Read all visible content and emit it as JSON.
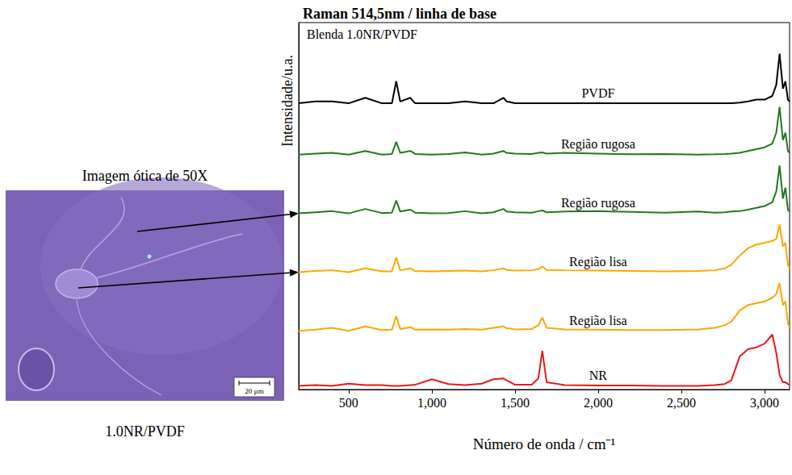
{
  "chart_data": {
    "type": "line",
    "title": "Raman 514,5nm / linha de base",
    "annotation": "Blenda 1.0NR/PVDF",
    "x_label": "Número de onda / cm⁻¹",
    "y_label": "Intensidade/u.a.",
    "xlim": [
      200,
      3150
    ],
    "xticks": [
      500,
      1000,
      1500,
      2000,
      2500,
      3000
    ],
    "ylim": [
      0,
      100
    ],
    "grid": false,
    "tick_labels": "x",
    "x": [
      200,
      300,
      400,
      500,
      600,
      700,
      760,
      786,
      810,
      870,
      880,
      900,
      1000,
      1100,
      1200,
      1300,
      1370,
      1430,
      1450,
      1500,
      1600,
      1640,
      1664,
      1690,
      1800,
      2000,
      2200,
      2400,
      2600,
      2700,
      2760,
      2800,
      2850,
      2900,
      2950,
      3000,
      3046,
      3070,
      3090,
      3110,
      3125,
      3140,
      3150
    ],
    "series": [
      {
        "name": "PVDF",
        "color": "#000000",
        "values": [
          78,
          78.5,
          78.5,
          78,
          79.5,
          78,
          78,
          84,
          78.5,
          79.5,
          79,
          78,
          78,
          78,
          78.5,
          78,
          78,
          79.5,
          78.5,
          78,
          78,
          78,
          78,
          78,
          78,
          78,
          78,
          78,
          78,
          78,
          78,
          78,
          78.2,
          78.5,
          79,
          79,
          80,
          83,
          91.5,
          82,
          84,
          79,
          78.5
        ]
      },
      {
        "name": "Região rugosa",
        "color": "#1f7a1f",
        "values": [
          64,
          64.3,
          64.5,
          64,
          65,
          64,
          64.2,
          67.5,
          64.5,
          65,
          64.8,
          64.2,
          64,
          64.2,
          64.6,
          64,
          64.3,
          65,
          64.5,
          64.3,
          64.2,
          64.5,
          64.6,
          64.3,
          64.5,
          64.3,
          64.1,
          64.2,
          64,
          64.1,
          64.2,
          64.3,
          64.5,
          65,
          65.5,
          66,
          67,
          70,
          77,
          68,
          70,
          65,
          64.5
        ]
      },
      {
        "name": "Região rugosa",
        "color": "#1f7a1f",
        "values": [
          48,
          48.3,
          48.6,
          48,
          49.2,
          48.1,
          48.2,
          51.5,
          48.5,
          49,
          48.8,
          48.2,
          48,
          48.1,
          48.6,
          48,
          48.3,
          49.2,
          48.5,
          48.3,
          48.2,
          48.6,
          48.8,
          48.3,
          48.5,
          48.6,
          48.4,
          48.2,
          48.5,
          48.2,
          48.3,
          48.5,
          48.6,
          49,
          49.5,
          50,
          51,
          54,
          61,
          52,
          55,
          49,
          48.5
        ]
      },
      {
        "name": "Região lisa",
        "color": "#ffa500",
        "values": [
          32,
          32.3,
          32.5,
          32,
          33,
          32.2,
          32.2,
          36,
          32.5,
          33,
          32.8,
          32.3,
          32.2,
          32.3,
          32.4,
          32.2,
          32.5,
          33,
          32.6,
          32.4,
          32.5,
          32.8,
          33.5,
          32.6,
          32.5,
          32.4,
          32.3,
          32.2,
          32.3,
          32.5,
          33,
          34,
          36.5,
          38.5,
          39.5,
          40,
          40.5,
          41,
          45,
          39,
          40,
          34,
          33
        ]
      },
      {
        "name": "Região lisa",
        "color": "#ffa500",
        "values": [
          16,
          16.3,
          16.8,
          16,
          17.2,
          16.2,
          16.3,
          20,
          16.5,
          17,
          16.8,
          16.3,
          16.4,
          16.3,
          16.5,
          16.3,
          16.8,
          17.2,
          16.7,
          16.4,
          16.5,
          17.5,
          19.6,
          16.8,
          16.4,
          16.3,
          16.2,
          16.2,
          16.4,
          16.8,
          17.5,
          18.5,
          21.5,
          23,
          23.5,
          24,
          25,
          26,
          29,
          23,
          24,
          18,
          17
        ]
      },
      {
        "name": "NR",
        "color": "#e8191a",
        "values": [
          1,
          1.2,
          1,
          1.6,
          1.2,
          1.2,
          1,
          1,
          1,
          1.2,
          1.2,
          1.3,
          2.8,
          1.5,
          1.2,
          1.6,
          2.8,
          3,
          2.5,
          1.3,
          1.3,
          3,
          10.5,
          2,
          1.2,
          1.1,
          1.1,
          1,
          1,
          1.2,
          1.5,
          2.5,
          9,
          11,
          11.5,
          12.5,
          15,
          10,
          4,
          2,
          2,
          1.5,
          1.2
        ]
      }
    ]
  },
  "image": {
    "caption_top": "Imagem ótica de 50X",
    "caption_bottom": "1.0NR/PVDF",
    "scale_bar": "20 µm"
  }
}
